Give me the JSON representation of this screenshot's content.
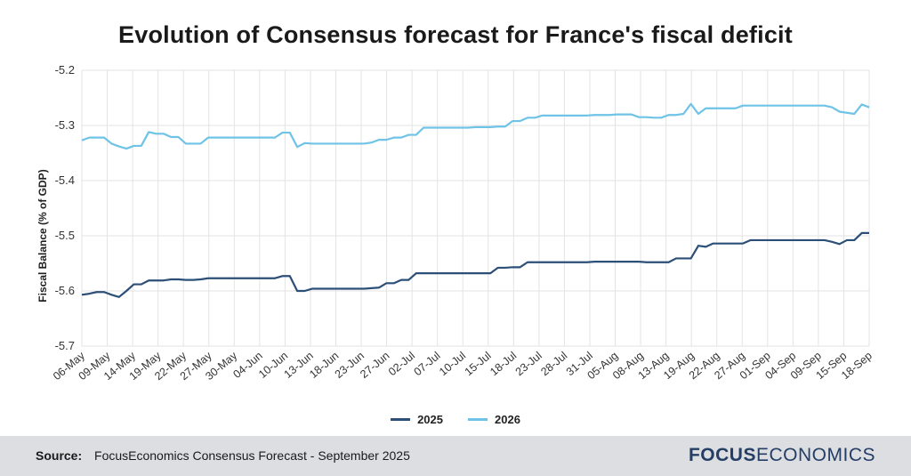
{
  "title": "Evolution of Consensus forecast for France's fiscal deficit",
  "colors": {
    "s2025": "#2c4f78",
    "s2026": "#6fc3e6",
    "grid": "#e3e3e3",
    "footer_bg": "#dcdee2"
  },
  "legend": [
    {
      "name": "2025",
      "color": "#2c4f78"
    },
    {
      "name": "2026",
      "color": "#6fc3e6"
    }
  ],
  "footer": {
    "source_label": "Source:",
    "source_text": "FocusEconomics Consensus Forecast - September 2025",
    "logo_focus": "FOCUS",
    "logo_economics": "ECONOMICS"
  },
  "chart_data": {
    "type": "line",
    "title": "Evolution of Consensus forecast for France's fiscal deficit",
    "xlabel": "",
    "ylabel": "Fiscal Balance (% of GDP)",
    "ylim": [
      -5.7,
      -5.2
    ],
    "yticks": [
      -5.2,
      -5.3,
      -5.4,
      -5.5,
      -5.6,
      -5.7
    ],
    "ytick_labels": [
      "-5.2",
      "-5.3",
      "-5.4",
      "-5.5",
      "-5.6",
      "-5.7"
    ],
    "grid": true,
    "legend_position": "bottom-center",
    "x_tick_labels": [
      "06-May",
      "09-May",
      "14-May",
      "19-May",
      "22-May",
      "27-May",
      "30-May",
      "04-Jun",
      "10-Jun",
      "13-Jun",
      "18-Jun",
      "23-Jun",
      "27-Jun",
      "02-Jul",
      "07-Jul",
      "10-Jul",
      "15-Jul",
      "18-Jul",
      "23-Jul",
      "28-Jul",
      "31-Jul",
      "05-Aug",
      "08-Aug",
      "13-Aug",
      "19-Aug",
      "22-Aug",
      "27-Aug",
      "01-Sep",
      "04-Sep",
      "09-Sep",
      "15-Sep",
      "18-Sep"
    ],
    "series": [
      {
        "name": "2025",
        "values": [
          -5.607,
          -5.605,
          -5.602,
          -5.602,
          -5.607,
          -5.611,
          -5.6,
          -5.588,
          -5.588,
          -5.581,
          -5.581,
          -5.581,
          -5.579,
          -5.579,
          -5.58,
          -5.58,
          -5.579,
          -5.577,
          -5.577,
          -5.577,
          -5.577,
          -5.577,
          -5.577,
          -5.577,
          -5.577,
          -5.577,
          -5.577,
          -5.573,
          -5.573,
          -5.6,
          -5.6,
          -5.596,
          -5.596,
          -5.596,
          -5.596,
          -5.596,
          -5.596,
          -5.596,
          -5.596,
          -5.595,
          -5.594,
          -5.586,
          -5.586,
          -5.58,
          -5.58,
          -5.568,
          -5.568,
          -5.568,
          -5.568,
          -5.568,
          -5.568,
          -5.568,
          -5.568,
          -5.568,
          -5.568,
          -5.568,
          -5.558,
          -5.558,
          -5.557,
          -5.557,
          -5.548,
          -5.548,
          -5.548,
          -5.548,
          -5.548,
          -5.548,
          -5.548,
          -5.548,
          -5.548,
          -5.547,
          -5.547,
          -5.547,
          -5.547,
          -5.547,
          -5.547,
          -5.547,
          -5.548,
          -5.548,
          -5.548,
          -5.548,
          -5.541,
          -5.541,
          -5.541,
          -5.518,
          -5.52,
          -5.514,
          -5.514,
          -5.514,
          -5.514,
          -5.514,
          -5.508,
          -5.508,
          -5.508,
          -5.508,
          -5.508,
          -5.508,
          -5.508,
          -5.508,
          -5.508,
          -5.508,
          -5.508,
          -5.511,
          -5.515,
          -5.508,
          -5.508,
          -5.495,
          -5.495
        ]
      },
      {
        "name": "2026",
        "values": [
          -5.327,
          -5.322,
          -5.322,
          -5.322,
          -5.333,
          -5.338,
          -5.342,
          -5.337,
          -5.337,
          -5.312,
          -5.315,
          -5.315,
          -5.321,
          -5.321,
          -5.333,
          -5.333,
          -5.333,
          -5.322,
          -5.322,
          -5.322,
          -5.322,
          -5.322,
          -5.322,
          -5.322,
          -5.322,
          -5.322,
          -5.322,
          -5.313,
          -5.313,
          -5.339,
          -5.332,
          -5.333,
          -5.333,
          -5.333,
          -5.333,
          -5.333,
          -5.333,
          -5.333,
          -5.333,
          -5.331,
          -5.326,
          -5.326,
          -5.322,
          -5.322,
          -5.317,
          -5.317,
          -5.304,
          -5.304,
          -5.304,
          -5.304,
          -5.304,
          -5.304,
          -5.304,
          -5.303,
          -5.303,
          -5.303,
          -5.302,
          -5.302,
          -5.292,
          -5.292,
          -5.286,
          -5.286,
          -5.282,
          -5.282,
          -5.282,
          -5.282,
          -5.282,
          -5.282,
          -5.282,
          -5.281,
          -5.281,
          -5.281,
          -5.28,
          -5.28,
          -5.28,
          -5.285,
          -5.285,
          -5.286,
          -5.286,
          -5.281,
          -5.281,
          -5.279,
          -5.261,
          -5.279,
          -5.269,
          -5.269,
          -5.269,
          -5.269,
          -5.269,
          -5.264,
          -5.264,
          -5.264,
          -5.264,
          -5.264,
          -5.264,
          -5.264,
          -5.264,
          -5.264,
          -5.264,
          -5.264,
          -5.264,
          -5.267,
          -5.275,
          -5.277,
          -5.279,
          -5.262,
          -5.267
        ]
      }
    ]
  }
}
